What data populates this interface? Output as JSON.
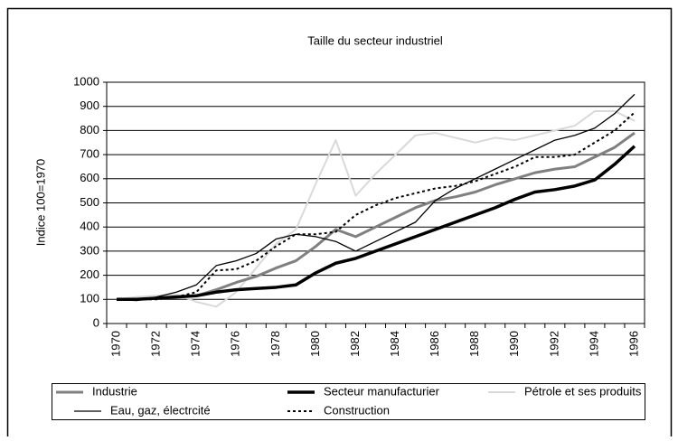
{
  "chart_data": {
    "type": "line",
    "title": "Taille du secteur industriel",
    "y_label": "Indice 100=1970",
    "categories": [
      "1970",
      null,
      "1972",
      null,
      "1974",
      null,
      "1976",
      null,
      "1978",
      null,
      "1980",
      null,
      "1982",
      null,
      "1984",
      null,
      "1986",
      null,
      "1988",
      null,
      "1990",
      null,
      "1992",
      null,
      "1994",
      null,
      "1996"
    ],
    "ylim": [
      0,
      1000
    ],
    "yticks": [
      0,
      100,
      200,
      300,
      400,
      500,
      600,
      700,
      800,
      900,
      1000
    ],
    "grid": true,
    "series": [
      {
        "name": "Industrie",
        "color": "#808080",
        "values": [
          100,
          100,
          105,
          110,
          115,
          140,
          170,
          195,
          230,
          260,
          320,
          390,
          360,
          400,
          440,
          480,
          510,
          525,
          545,
          575,
          600,
          625,
          640,
          650,
          690,
          730,
          790
        ]
      },
      {
        "name": "Secteur manufacturier",
        "color": "#000000",
        "values": [
          100,
          100,
          105,
          110,
          115,
          130,
          140,
          145,
          150,
          160,
          210,
          250,
          270,
          300,
          330,
          360,
          390,
          420,
          450,
          480,
          515,
          545,
          555,
          570,
          595,
          660,
          735
        ]
      },
      {
        "name": "Pétrole et ses produits",
        "color": "#d9d9d9",
        "values": [
          100,
          110,
          115,
          120,
          90,
          70,
          130,
          230,
          330,
          390,
          580,
          760,
          530,
          620,
          700,
          780,
          790,
          770,
          750,
          770,
          760,
          780,
          800,
          820,
          880,
          880,
          840
        ]
      },
      {
        "name": "Eau, gaz, électrcité",
        "color": "#000000",
        "values": [
          100,
          95,
          110,
          130,
          160,
          240,
          260,
          290,
          350,
          370,
          360,
          340,
          300,
          340,
          380,
          420,
          510,
          560,
          600,
          640,
          680,
          720,
          760,
          780,
          810,
          870,
          950
        ]
      },
      {
        "name": "Construction",
        "color": "#000000",
        "dash": true,
        "values": [
          100,
          100,
          100,
          110,
          130,
          220,
          225,
          260,
          320,
          370,
          370,
          380,
          450,
          490,
          520,
          540,
          560,
          570,
          590,
          620,
          650,
          690,
          690,
          700,
          750,
          800,
          875
        ]
      }
    ]
  }
}
